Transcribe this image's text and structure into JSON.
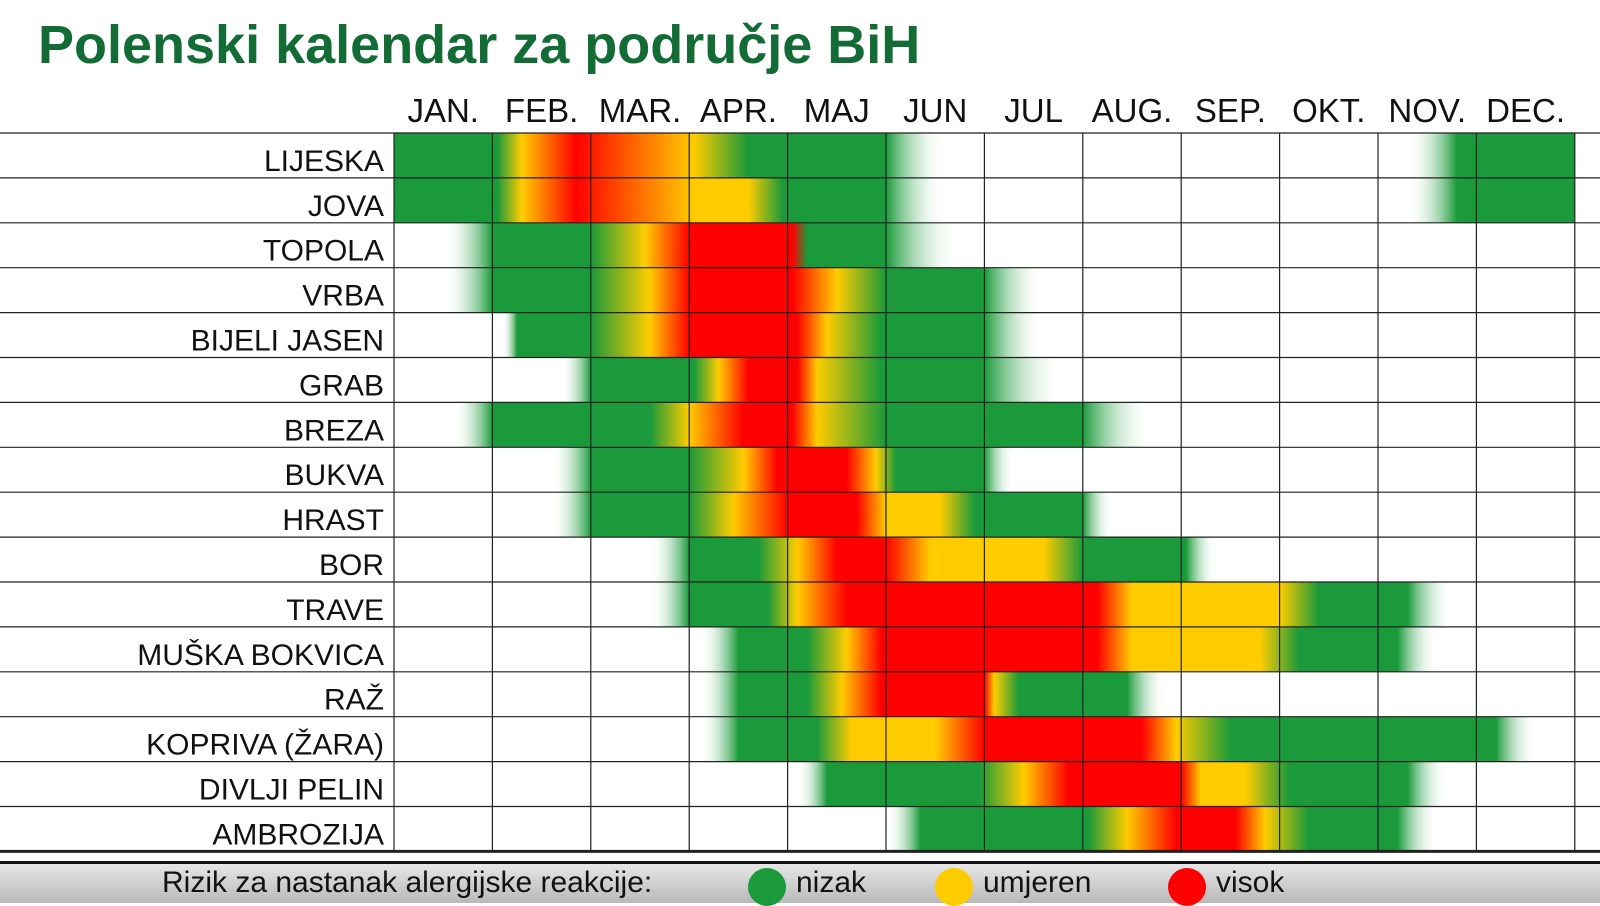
{
  "title": "Polenski kalendar za područje BiH",
  "chart_data": {
    "type": "heatmap",
    "title": "Polenski kalendar za područje BiH",
    "months": [
      "JAN.",
      "FEB.",
      "MAR.",
      "APR.",
      "MAJ",
      "JUN",
      "JUL",
      "AUG.",
      "SEP.",
      "OKT.",
      "NOV.",
      "DEC."
    ],
    "level_colors": {
      "low": "#1a9a3a",
      "moderate": "#ffcc00",
      "high": "#ff0000"
    },
    "rows": [
      {
        "plant": "LIJESKA",
        "stops": [
          [
            0,
            "low"
          ],
          [
            1.05,
            "low"
          ],
          [
            1.3,
            "moderate"
          ],
          [
            1.85,
            "high"
          ],
          [
            3.05,
            "moderate"
          ],
          [
            3.6,
            "low"
          ],
          [
            5.0,
            "low"
          ],
          [
            5.6,
            "none"
          ],
          [
            10.3,
            "none"
          ],
          [
            10.8,
            "low"
          ],
          [
            12,
            "low"
          ]
        ]
      },
      {
        "plant": "JOVA",
        "stops": [
          [
            0,
            "low"
          ],
          [
            1.05,
            "low"
          ],
          [
            1.3,
            "moderate"
          ],
          [
            1.85,
            "high"
          ],
          [
            3.05,
            "moderate"
          ],
          [
            3.6,
            "moderate"
          ],
          [
            3.95,
            "low"
          ],
          [
            5.0,
            "low"
          ],
          [
            5.6,
            "none"
          ],
          [
            10.3,
            "none"
          ],
          [
            10.8,
            "low"
          ],
          [
            12,
            "low"
          ]
        ]
      },
      {
        "plant": "TOPOLA",
        "stops": [
          [
            0.5,
            "none"
          ],
          [
            1.0,
            "low"
          ],
          [
            2.0,
            "low"
          ],
          [
            2.55,
            "moderate"
          ],
          [
            3.0,
            "high"
          ],
          [
            4.05,
            "high"
          ],
          [
            4.2,
            "low"
          ],
          [
            5.0,
            "low"
          ],
          [
            5.75,
            "none"
          ]
        ]
      },
      {
        "plant": "VRBA",
        "stops": [
          [
            0.5,
            "none"
          ],
          [
            1.0,
            "low"
          ],
          [
            2.0,
            "low"
          ],
          [
            2.6,
            "moderate"
          ],
          [
            3.0,
            "high"
          ],
          [
            4.05,
            "high"
          ],
          [
            4.5,
            "moderate"
          ],
          [
            5.0,
            "low"
          ],
          [
            6.0,
            "low"
          ],
          [
            6.6,
            "none"
          ]
        ]
      },
      {
        "plant": "BIJELI JASEN",
        "stops": [
          [
            1.1,
            "none"
          ],
          [
            1.25,
            "low"
          ],
          [
            2.0,
            "low"
          ],
          [
            2.6,
            "moderate"
          ],
          [
            3.0,
            "high"
          ],
          [
            4.1,
            "high"
          ],
          [
            4.4,
            "moderate"
          ],
          [
            4.95,
            "low"
          ],
          [
            6.0,
            "low"
          ],
          [
            6.6,
            "none"
          ]
        ]
      },
      {
        "plant": "GRAB",
        "stops": [
          [
            1.7,
            "none"
          ],
          [
            2.0,
            "low"
          ],
          [
            3.05,
            "low"
          ],
          [
            3.3,
            "moderate"
          ],
          [
            3.6,
            "high"
          ],
          [
            4.1,
            "high"
          ],
          [
            4.3,
            "moderate"
          ],
          [
            4.95,
            "low"
          ],
          [
            6.0,
            "low"
          ],
          [
            6.8,
            "none"
          ]
        ]
      },
      {
        "plant": "BREZA",
        "stops": [
          [
            0.6,
            "none"
          ],
          [
            1.0,
            "low"
          ],
          [
            2.6,
            "low"
          ],
          [
            3.0,
            "moderate"
          ],
          [
            3.55,
            "high"
          ],
          [
            4.05,
            "high"
          ],
          [
            4.3,
            "moderate"
          ],
          [
            5.0,
            "low"
          ],
          [
            7.0,
            "low"
          ],
          [
            7.7,
            "none"
          ]
        ]
      },
      {
        "plant": "BUKVA",
        "stops": [
          [
            1.6,
            "none"
          ],
          [
            2.0,
            "low"
          ],
          [
            3.0,
            "low"
          ],
          [
            3.55,
            "moderate"
          ],
          [
            3.9,
            "high"
          ],
          [
            4.6,
            "high"
          ],
          [
            4.9,
            "moderate"
          ],
          [
            5.1,
            "low"
          ],
          [
            6.0,
            "low"
          ],
          [
            6.3,
            "none"
          ]
        ]
      },
      {
        "plant": "HRAST",
        "stops": [
          [
            1.6,
            "none"
          ],
          [
            2.0,
            "low"
          ],
          [
            3.0,
            "low"
          ],
          [
            3.45,
            "moderate"
          ],
          [
            4.0,
            "high"
          ],
          [
            4.7,
            "high"
          ],
          [
            5.0,
            "moderate"
          ],
          [
            5.55,
            "moderate"
          ],
          [
            5.9,
            "low"
          ],
          [
            7.0,
            "low"
          ],
          [
            7.3,
            "none"
          ]
        ]
      },
      {
        "plant": "BOR",
        "stops": [
          [
            2.6,
            "none"
          ],
          [
            3.0,
            "low"
          ],
          [
            3.7,
            "low"
          ],
          [
            4.1,
            "moderate"
          ],
          [
            4.5,
            "high"
          ],
          [
            5.0,
            "high"
          ],
          [
            5.45,
            "moderate"
          ],
          [
            6.6,
            "moderate"
          ],
          [
            7.0,
            "low"
          ],
          [
            8.05,
            "low"
          ],
          [
            8.35,
            "none"
          ]
        ]
      },
      {
        "plant": "TRAVE",
        "stops": [
          [
            2.6,
            "none"
          ],
          [
            3.0,
            "low"
          ],
          [
            3.8,
            "low"
          ],
          [
            4.1,
            "moderate"
          ],
          [
            4.6,
            "high"
          ],
          [
            7.15,
            "high"
          ],
          [
            7.5,
            "moderate"
          ],
          [
            9.0,
            "moderate"
          ],
          [
            9.4,
            "low"
          ],
          [
            10.3,
            "low"
          ],
          [
            10.75,
            "none"
          ]
        ]
      },
      {
        "plant": "MUŠKA BOKVICA",
        "stops": [
          [
            3.1,
            "none"
          ],
          [
            3.5,
            "low"
          ],
          [
            4.2,
            "low"
          ],
          [
            4.6,
            "moderate"
          ],
          [
            4.95,
            "high"
          ],
          [
            7.15,
            "high"
          ],
          [
            7.5,
            "moderate"
          ],
          [
            8.8,
            "moderate"
          ],
          [
            9.2,
            "low"
          ],
          [
            10.2,
            "low"
          ],
          [
            10.6,
            "none"
          ]
        ]
      },
      {
        "plant": "RAŽ",
        "stops": [
          [
            3.1,
            "none"
          ],
          [
            3.5,
            "low"
          ],
          [
            4.2,
            "low"
          ],
          [
            4.55,
            "moderate"
          ],
          [
            4.95,
            "high"
          ],
          [
            6.0,
            "high"
          ],
          [
            6.1,
            "moderate"
          ],
          [
            6.35,
            "low"
          ],
          [
            7.45,
            "low"
          ],
          [
            7.85,
            "none"
          ]
        ]
      },
      {
        "plant": "KOPRIVA (ŽARA)",
        "stops": [
          [
            3.1,
            "none"
          ],
          [
            3.5,
            "low"
          ],
          [
            4.3,
            "low"
          ],
          [
            4.65,
            "moderate"
          ],
          [
            5.5,
            "moderate"
          ],
          [
            6.0,
            "high"
          ],
          [
            7.6,
            "high"
          ],
          [
            7.95,
            "moderate"
          ],
          [
            8.5,
            "low"
          ],
          [
            11.2,
            "low"
          ],
          [
            11.6,
            "none"
          ]
        ]
      },
      {
        "plant": "DIVLJI PELIN",
        "stops": [
          [
            4.1,
            "none"
          ],
          [
            4.4,
            "low"
          ],
          [
            5.95,
            "low"
          ],
          [
            6.4,
            "moderate"
          ],
          [
            6.85,
            "high"
          ],
          [
            8.0,
            "high"
          ],
          [
            8.2,
            "moderate"
          ],
          [
            8.65,
            "moderate"
          ],
          [
            9.1,
            "low"
          ],
          [
            10.3,
            "low"
          ],
          [
            10.7,
            "none"
          ]
        ]
      },
      {
        "plant": "AMBROZIJA",
        "stops": [
          [
            5.0,
            "none"
          ],
          [
            5.35,
            "low"
          ],
          [
            7.05,
            "low"
          ],
          [
            7.45,
            "moderate"
          ],
          [
            7.95,
            "high"
          ],
          [
            8.55,
            "high"
          ],
          [
            8.85,
            "moderate"
          ],
          [
            9.3,
            "low"
          ],
          [
            10.2,
            "low"
          ],
          [
            10.6,
            "none"
          ]
        ]
      }
    ]
  },
  "legend": {
    "label": "Rizik za nastanak alergijske reakcije:",
    "items": [
      {
        "text": "nizak",
        "color": "#1a9a3a"
      },
      {
        "text": "umjeren",
        "color": "#ffcc00"
      },
      {
        "text": "visok",
        "color": "#ff0000"
      }
    ]
  }
}
